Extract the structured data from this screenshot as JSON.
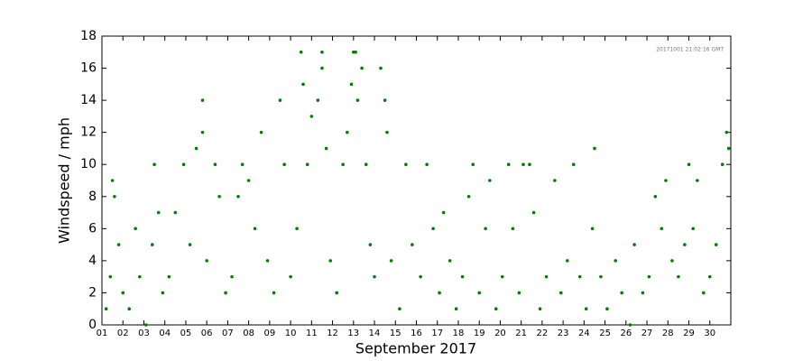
{
  "chart_data": {
    "type": "scatter",
    "ylabel": "Windspeed / mph",
    "xlabel": "September 2017",
    "annotation": "20171001 21:02:16 GMT",
    "xlim": [
      1,
      31
    ],
    "ylim": [
      0,
      18
    ],
    "yticks": [
      0,
      2,
      4,
      6,
      8,
      10,
      12,
      14,
      16,
      18
    ],
    "xticks": [
      {
        "value": 1,
        "label": "01"
      },
      {
        "value": 2,
        "label": "02"
      },
      {
        "value": 3,
        "label": "03"
      },
      {
        "value": 4,
        "label": "04"
      },
      {
        "value": 5,
        "label": "05"
      },
      {
        "value": 6,
        "label": "06"
      },
      {
        "value": 7,
        "label": "07"
      },
      {
        "value": 8,
        "label": "08"
      },
      {
        "value": 9,
        "label": "09"
      },
      {
        "value": 10,
        "label": "10"
      },
      {
        "value": 11,
        "label": "11"
      },
      {
        "value": 12,
        "label": "12"
      },
      {
        "value": 13,
        "label": "13"
      },
      {
        "value": 14,
        "label": "14"
      },
      {
        "value": 15,
        "label": "15"
      },
      {
        "value": 16,
        "label": "16"
      },
      {
        "value": 17,
        "label": "17"
      },
      {
        "value": 18,
        "label": "18"
      },
      {
        "value": 19,
        "label": "19"
      },
      {
        "value": 20,
        "label": "20"
      },
      {
        "value": 21,
        "label": "21"
      },
      {
        "value": 22,
        "label": "22"
      },
      {
        "value": 23,
        "label": "23"
      },
      {
        "value": 24,
        "label": "24"
      },
      {
        "value": 25,
        "label": "25"
      },
      {
        "value": 26,
        "label": "26"
      },
      {
        "value": 27,
        "label": "27"
      },
      {
        "value": 28,
        "label": "28"
      },
      {
        "value": 29,
        "label": "29"
      },
      {
        "value": 30,
        "label": "30"
      }
    ],
    "color": "#007f00",
    "x": [
      1.2,
      1.4,
      1.5,
      1.6,
      1.8,
      2.0,
      2.3,
      2.6,
      2.8,
      3.1,
      3.4,
      3.5,
      3.7,
      3.9,
      4.2,
      4.5,
      4.9,
      5.2,
      5.5,
      5.8,
      5.8,
      6.0,
      6.4,
      6.6,
      6.9,
      7.2,
      7.5,
      7.7,
      8.0,
      8.3,
      8.6,
      8.9,
      9.2,
      9.5,
      9.7,
      10.0,
      10.3,
      10.5,
      10.6,
      10.8,
      11.0,
      11.3,
      11.5,
      11.5,
      11.7,
      11.9,
      12.2,
      12.5,
      12.7,
      12.9,
      13.0,
      13.1,
      13.2,
      13.4,
      13.6,
      13.8,
      14.0,
      14.3,
      14.5,
      14.6,
      14.8,
      15.2,
      15.5,
      15.8,
      16.2,
      16.5,
      16.8,
      17.1,
      17.3,
      17.6,
      17.9,
      18.2,
      18.5,
      18.7,
      19.0,
      19.3,
      19.5,
      19.8,
      20.1,
      20.4,
      20.6,
      20.9,
      21.1,
      21.4,
      21.6,
      21.9,
      22.2,
      22.6,
      22.9,
      23.2,
      23.5,
      23.8,
      24.1,
      24.4,
      24.5,
      24.8,
      25.1,
      25.5,
      25.8,
      26.2,
      26.4,
      26.8,
      27.1,
      27.4,
      27.7,
      27.9,
      28.2,
      28.5,
      28.8,
      29.0,
      29.2,
      29.4,
      29.7,
      30.0,
      30.3,
      30.6,
      30.8,
      30.9
    ],
    "values": [
      1,
      3,
      9,
      8,
      5,
      2,
      1,
      6,
      3,
      0,
      5,
      10,
      7,
      2,
      3,
      7,
      10,
      5,
      11,
      14,
      12,
      4,
      10,
      8,
      2,
      3,
      8,
      10,
      9,
      6,
      12,
      4,
      2,
      14,
      10,
      3,
      6,
      17,
      15,
      10,
      13,
      14,
      17,
      16,
      11,
      4,
      2,
      10,
      12,
      15,
      17,
      17,
      14,
      16,
      10,
      5,
      3,
      16,
      14,
      12,
      4,
      1,
      10,
      5,
      3,
      10,
      6,
      2,
      7,
      4,
      1,
      3,
      8,
      10,
      2,
      6,
      9,
      1,
      3,
      10,
      6,
      2,
      10,
      10,
      7,
      1,
      3,
      9,
      2,
      4,
      10,
      3,
      1,
      6,
      11,
      3,
      1,
      4,
      2,
      0,
      5,
      2,
      3,
      8,
      6,
      9,
      4,
      3,
      5,
      10,
      6,
      9,
      2,
      3,
      5,
      10,
      12,
      11
    ]
  }
}
